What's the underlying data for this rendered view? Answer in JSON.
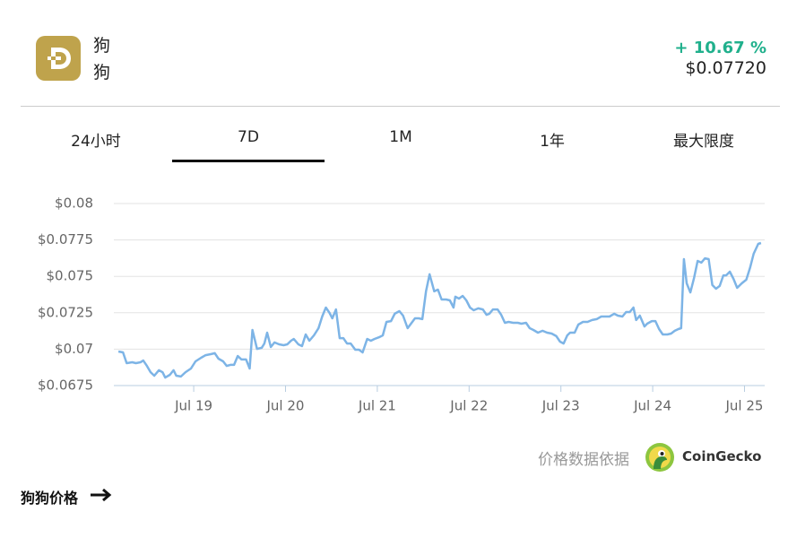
{
  "header": {
    "name": "狗",
    "symbol": "狗",
    "change": "+ 10.67 %",
    "price": "$0.07720"
  },
  "tabs": [
    "24小时",
    "7D",
    "1M",
    "1年",
    "最大限度"
  ],
  "chart_data": {
    "type": "line",
    "color": "#7db4e6",
    "grid": true,
    "x": [
      18.18,
      18.23,
      18.27,
      18.33,
      18.37,
      18.42,
      18.45,
      18.49,
      18.53,
      18.57,
      18.62,
      18.66,
      18.69,
      18.74,
      18.78,
      18.81,
      18.86,
      18.91,
      18.97,
      19.02,
      19.08,
      19.13,
      19.19,
      19.23,
      19.27,
      19.32,
      19.36,
      19.4,
      19.44,
      19.48,
      19.52,
      19.57,
      19.61,
      19.64,
      19.69,
      19.74,
      19.77,
      19.8,
      19.84,
      19.88,
      19.93,
      19.98,
      20.02,
      20.06,
      20.09,
      20.14,
      20.18,
      20.22,
      20.26,
      20.31,
      20.36,
      20.4,
      20.44,
      20.48,
      20.51,
      20.55,
      20.59,
      20.63,
      20.67,
      20.71,
      20.76,
      20.8,
      20.84,
      20.89,
      20.93,
      20.97,
      21.02,
      21.06,
      21.1,
      21.15,
      21.19,
      21.24,
      21.28,
      21.33,
      21.36,
      21.41,
      21.45,
      21.49,
      21.53,
      21.57,
      21.62,
      21.66,
      21.7,
      21.75,
      21.79,
      21.83,
      21.85,
      21.89,
      21.93,
      21.97,
      22.01,
      22.05,
      22.1,
      22.15,
      22.19,
      22.22,
      22.26,
      22.31,
      22.35,
      22.39,
      22.43,
      22.48,
      22.53,
      22.57,
      22.62,
      22.66,
      22.7,
      22.75,
      22.8,
      22.85,
      22.9,
      22.95,
      22.99,
      23.03,
      23.07,
      23.1,
      23.15,
      23.19,
      23.24,
      23.29,
      23.34,
      23.39,
      23.44,
      23.49,
      23.53,
      23.58,
      23.62,
      23.67,
      23.71,
      23.75,
      23.79,
      23.82,
      23.86,
      23.91,
      23.94,
      23.99,
      24.03,
      24.07,
      24.11,
      24.16,
      24.2,
      24.24,
      24.28,
      24.31,
      24.34,
      24.37,
      24.41,
      24.45,
      24.49,
      24.53,
      24.57,
      24.61,
      24.65,
      24.69,
      24.73,
      24.77,
      24.8,
      24.84,
      24.88,
      24.92,
      24.97,
      25.02,
      25.06,
      25.1,
      25.15,
      25.18
    ],
    "values": [
      0.06984,
      0.06978,
      0.06904,
      0.0691,
      0.06904,
      0.0691,
      0.06922,
      0.06885,
      0.06842,
      0.06818,
      0.06855,
      0.06842,
      0.06805,
      0.06824,
      0.06855,
      0.06818,
      0.06812,
      0.06842,
      0.06867,
      0.06916,
      0.06941,
      0.06959,
      0.06966,
      0.06972,
      0.06935,
      0.06916,
      0.06885,
      0.06892,
      0.06892,
      0.06953,
      0.06929,
      0.06929,
      0.06867,
      0.07132,
      0.07002,
      0.07009,
      0.07039,
      0.07113,
      0.07015,
      0.07046,
      0.07033,
      0.07027,
      0.07033,
      0.07058,
      0.0707,
      0.07033,
      0.07021,
      0.07101,
      0.07058,
      0.07095,
      0.07144,
      0.07224,
      0.07286,
      0.07249,
      0.07212,
      0.07273,
      0.07076,
      0.07076,
      0.07039,
      0.07039,
      0.06996,
      0.06996,
      0.06978,
      0.0707,
      0.07058,
      0.0707,
      0.07082,
      0.07095,
      0.07187,
      0.07193,
      0.07243,
      0.07261,
      0.0723,
      0.07144,
      0.07169,
      0.07212,
      0.07212,
      0.07206,
      0.07397,
      0.07514,
      0.07397,
      0.07409,
      0.07341,
      0.07341,
      0.07335,
      0.07286,
      0.0736,
      0.07347,
      0.07366,
      0.07335,
      0.07286,
      0.07267,
      0.0728,
      0.07273,
      0.07236,
      0.07243,
      0.07273,
      0.07273,
      0.07236,
      0.07181,
      0.07187,
      0.07181,
      0.07181,
      0.07175,
      0.07181,
      0.07144,
      0.07132,
      0.07113,
      0.07126,
      0.07113,
      0.07107,
      0.07089,
      0.07052,
      0.07039,
      0.07095,
      0.07113,
      0.07113,
      0.07169,
      0.07187,
      0.07187,
      0.072,
      0.07206,
      0.07224,
      0.07224,
      0.07224,
      0.07243,
      0.0723,
      0.07224,
      0.07255,
      0.07255,
      0.07286,
      0.072,
      0.0723,
      0.07156,
      0.07175,
      0.07193,
      0.07193,
      0.07138,
      0.07101,
      0.07101,
      0.07107,
      0.07126,
      0.07138,
      0.07144,
      0.07618,
      0.07452,
      0.0739,
      0.07489,
      0.07606,
      0.07594,
      0.07624,
      0.07618,
      0.0744,
      0.07415,
      0.07434,
      0.07507,
      0.07507,
      0.07532,
      0.07483,
      0.07421,
      0.07452,
      0.07477,
      0.07557,
      0.07655,
      0.07723,
      0.07729
    ],
    "xlim": [
      18.13,
      25.22
    ],
    "xticks": [
      {
        "value": 19,
        "label": "Jul 19"
      },
      {
        "value": 20,
        "label": "Jul 20"
      },
      {
        "value": 21,
        "label": "Jul 21"
      },
      {
        "value": 22,
        "label": "Jul 22"
      },
      {
        "value": 23,
        "label": "Jul 23"
      },
      {
        "value": 24,
        "label": "Jul 24"
      },
      {
        "value": 25,
        "label": "Jul 25"
      }
    ],
    "ylim": [
      0.0675,
      0.08
    ],
    "yticks": [
      {
        "value": 0.0675,
        "label": "$0.0675"
      },
      {
        "value": 0.07,
        "label": "$0.07"
      },
      {
        "value": 0.0725,
        "label": "$0.0725"
      },
      {
        "value": 0.075,
        "label": "$0.075"
      },
      {
        "value": 0.0775,
        "label": "$0.0775"
      },
      {
        "value": 0.08,
        "label": "$0.08"
      }
    ]
  },
  "footer": {
    "attribution": "价格数据依据",
    "brand": "CoinGecko",
    "link": "狗狗价格"
  }
}
